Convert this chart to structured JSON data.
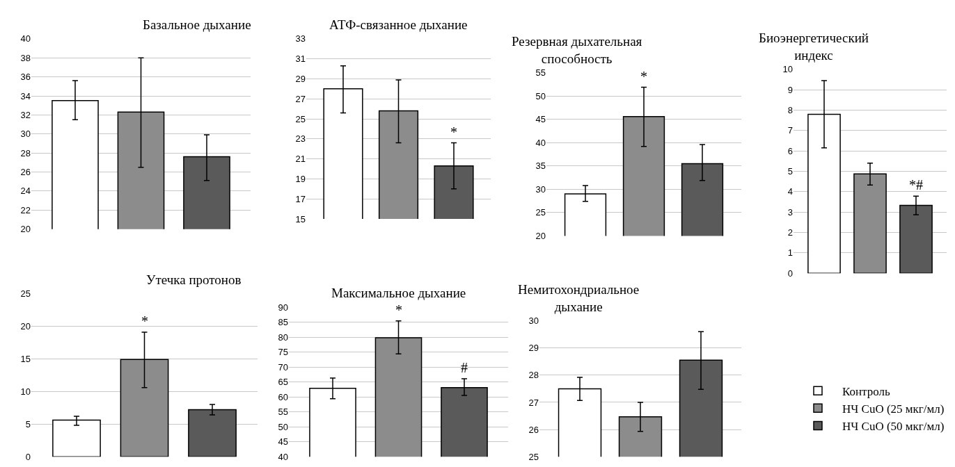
{
  "chart_data": [
    {
      "type": "bar",
      "title": "Базальное дыхание",
      "categories": [
        null
      ],
      "ylim": [
        20,
        40
      ],
      "yticks": [
        20,
        22,
        24,
        26,
        28,
        30,
        32,
        34,
        36,
        38,
        40
      ],
      "grid": "y",
      "tick_labels": "y",
      "series": [
        {
          "color": "#ffffff",
          "values": [
            33.5
          ],
          "errors": [
            [
              31.5,
              35.6
            ]
          ]
        },
        {
          "color": "#8c8c8c",
          "values": [
            32.3
          ],
          "errors": [
            [
              26.5,
              38.0
            ]
          ]
        },
        {
          "color": "#5a5a5a",
          "values": [
            27.6
          ],
          "errors": [
            [
              25.1,
              29.9
            ]
          ]
        }
      ]
    },
    {
      "type": "bar",
      "title": "АТФ-связанное дыхание",
      "categories": [
        null
      ],
      "ylim": [
        15,
        33
      ],
      "yticks": [
        15,
        17,
        19,
        21,
        23,
        25,
        27,
        29,
        31,
        33
      ],
      "grid": "y",
      "tick_labels": "y",
      "series": [
        {
          "color": "#ffffff",
          "values": [
            28.0
          ],
          "errors": [
            [
              25.6,
              30.3
            ]
          ]
        },
        {
          "color": "#8c8c8c",
          "values": [
            25.8
          ],
          "errors": [
            [
              22.6,
              28.9
            ]
          ]
        },
        {
          "color": "#5a5a5a",
          "values": [
            20.3
          ],
          "errors": [
            [
              18.0,
              22.6
            ]
          ],
          "value_labels": [
            "*"
          ]
        }
      ]
    },
    {
      "type": "bar",
      "title": "Резервная дыхательная способность",
      "categories": [
        null
      ],
      "ylim": [
        20,
        55
      ],
      "yticks": [
        20,
        25,
        30,
        35,
        40,
        45,
        50,
        55
      ],
      "grid": "y",
      "tick_labels": "y",
      "series": [
        {
          "color": "#ffffff",
          "values": [
            29.0
          ],
          "errors": [
            [
              27.4,
              30.8
            ]
          ]
        },
        {
          "color": "#8c8c8c",
          "values": [
            45.6
          ],
          "errors": [
            [
              39.2,
              51.9
            ]
          ],
          "value_labels": [
            "*"
          ]
        },
        {
          "color": "#5a5a5a",
          "values": [
            35.5
          ],
          "errors": [
            [
              31.9,
              39.6
            ]
          ]
        }
      ]
    },
    {
      "type": "bar",
      "title": "Биоэнергетический индекс",
      "categories": [
        null
      ],
      "ylim": [
        0,
        10
      ],
      "yticks": [
        0,
        1,
        2,
        3,
        4,
        5,
        6,
        7,
        8,
        9,
        10
      ],
      "grid": "y",
      "tick_labels": "y",
      "legend": "bottom",
      "series": [
        {
          "name": "Контроль",
          "color": "#ffffff",
          "values": [
            7.8
          ],
          "errors": [
            [
              6.15,
              9.45
            ]
          ]
        },
        {
          "name": "НЧ CuO (25 мкг/мл)",
          "color": "#8c8c8c",
          "values": [
            4.87
          ],
          "errors": [
            [
              4.33,
              5.4
            ]
          ]
        },
        {
          "name": "НЧ CuO (50 мкг/мл)",
          "color": "#5a5a5a",
          "values": [
            3.33
          ],
          "errors": [
            [
              2.87,
              3.78
            ]
          ],
          "value_labels": [
            "*#"
          ]
        }
      ]
    },
    {
      "type": "bar",
      "title": "Утечка протонов",
      "categories": [
        null
      ],
      "ylim": [
        0,
        25
      ],
      "yticks": [
        0,
        5,
        10,
        15,
        20,
        25
      ],
      "grid": "y",
      "tick_labels": "y",
      "series": [
        {
          "color": "#ffffff",
          "values": [
            5.6
          ],
          "errors": [
            [
              4.8,
              6.2
            ]
          ]
        },
        {
          "color": "#8c8c8c",
          "values": [
            14.9
          ],
          "errors": [
            [
              10.6,
              19.1
            ]
          ],
          "value_labels": [
            "*"
          ]
        },
        {
          "color": "#5a5a5a",
          "values": [
            7.2
          ],
          "errors": [
            [
              6.4,
              8.0
            ]
          ]
        }
      ]
    },
    {
      "type": "bar",
      "title": "Максимальное дыхание",
      "categories": [
        null
      ],
      "ylim": [
        40,
        90
      ],
      "yticks": [
        40,
        45,
        50,
        55,
        60,
        65,
        70,
        75,
        80,
        85,
        90
      ],
      "grid": "y",
      "tick_labels": "y",
      "series": [
        {
          "color": "#ffffff",
          "values": [
            62.9
          ],
          "errors": [
            [
              59.4,
              66.3
            ]
          ]
        },
        {
          "color": "#8c8c8c",
          "values": [
            79.8
          ],
          "errors": [
            [
              74.4,
              85.4
            ]
          ],
          "value_labels": [
            "*"
          ]
        },
        {
          "color": "#5a5a5a",
          "values": [
            63.1
          ],
          "errors": [
            [
              60.5,
              66.1
            ]
          ],
          "value_labels": [
            "#"
          ]
        }
      ]
    },
    {
      "type": "bar",
      "title": "Немитохондриальное дыхание",
      "categories": [
        null
      ],
      "ylim": [
        25,
        30
      ],
      "yticks": [
        25,
        26,
        27,
        28,
        29,
        30
      ],
      "grid": "y",
      "tick_labels": "y",
      "series": [
        {
          "color": "#ffffff",
          "values": [
            27.5
          ],
          "errors": [
            [
              27.07,
              27.92
            ]
          ]
        },
        {
          "color": "#8c8c8c",
          "values": [
            26.47
          ],
          "errors": [
            [
              25.93,
              27.0
            ]
          ]
        },
        {
          "color": "#5a5a5a",
          "values": [
            28.55
          ],
          "errors": [
            [
              27.48,
              29.6
            ]
          ]
        }
      ]
    }
  ]
}
